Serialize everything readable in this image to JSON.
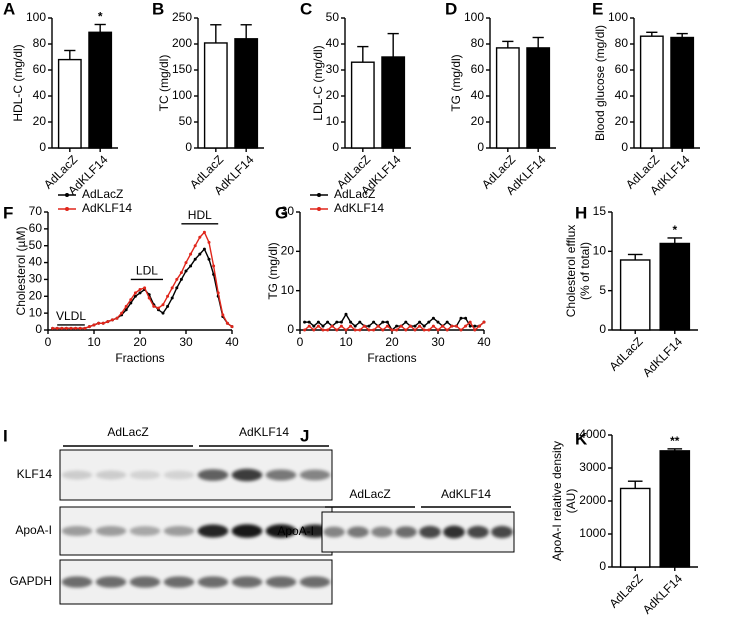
{
  "chart_data": [
    {
      "type": "bar",
      "panel": "A",
      "ylabel": [
        "HDL-C (mg/dl)"
      ],
      "categories": [
        "AdLacZ",
        "AdKLF14"
      ],
      "values": [
        68,
        89
      ],
      "errors": [
        7,
        6
      ],
      "colors": [
        "#ffffff",
        "#000000"
      ],
      "significance": [
        null,
        "*"
      ],
      "ylim": [
        0,
        100
      ],
      "yticks": [
        0,
        20,
        40,
        60,
        80,
        100
      ]
    },
    {
      "type": "bar",
      "panel": "B",
      "ylabel": [
        "TC (mg/dl)"
      ],
      "categories": [
        "AdLacZ",
        "AdKLF14"
      ],
      "values": [
        202,
        210
      ],
      "errors": [
        35,
        27
      ],
      "colors": [
        "#ffffff",
        "#000000"
      ],
      "significance": [
        null,
        null
      ],
      "ylim": [
        0,
        250
      ],
      "yticks": [
        0,
        50,
        100,
        150,
        200,
        250
      ]
    },
    {
      "type": "bar",
      "panel": "C",
      "ylabel": [
        "LDL-C (mg/dl)"
      ],
      "categories": [
        "AdLacZ",
        "AdKLF14"
      ],
      "values": [
        33,
        35
      ],
      "errors": [
        6,
        9
      ],
      "colors": [
        "#ffffff",
        "#000000"
      ],
      "significance": [
        null,
        null
      ],
      "ylim": [
        0,
        50
      ],
      "yticks": [
        0,
        10,
        20,
        30,
        40,
        50
      ]
    },
    {
      "type": "bar",
      "panel": "D",
      "ylabel": [
        "TG (mg/dl)"
      ],
      "categories": [
        "AdLacZ",
        "AdKLF14"
      ],
      "values": [
        77,
        77
      ],
      "errors": [
        5,
        8
      ],
      "colors": [
        "#ffffff",
        "#000000"
      ],
      "significance": [
        null,
        null
      ],
      "ylim": [
        0,
        100
      ],
      "yticks": [
        0,
        20,
        40,
        60,
        80,
        100
      ]
    },
    {
      "type": "bar",
      "panel": "E",
      "ylabel": [
        "Blood glucose (mg/dl)"
      ],
      "categories": [
        "AdLacZ",
        "AdKLF14"
      ],
      "values": [
        86,
        85
      ],
      "errors": [
        3,
        3
      ],
      "colors": [
        "#ffffff",
        "#000000"
      ],
      "significance": [
        null,
        null
      ],
      "ylim": [
        0,
        100
      ],
      "yticks": [
        0,
        20,
        40,
        60,
        80,
        100
      ]
    },
    {
      "type": "line",
      "panel": "F",
      "ylabel": [
        "Cholesterol (µM)"
      ],
      "xlabel": "Fractions",
      "annotations": [
        "VLDL",
        "LDL",
        "HDL"
      ],
      "x": [
        1,
        2,
        3,
        4,
        5,
        6,
        7,
        8,
        9,
        10,
        11,
        12,
        13,
        14,
        15,
        16,
        17,
        18,
        19,
        20,
        21,
        22,
        23,
        24,
        25,
        26,
        27,
        28,
        29,
        30,
        31,
        32,
        33,
        34,
        35,
        36,
        37,
        38,
        39,
        40
      ],
      "series": [
        {
          "name": "AdLacZ",
          "color": "#000000",
          "values": [
            1,
            1,
            1,
            1,
            1,
            1,
            1,
            1,
            2,
            3,
            4,
            4,
            5,
            6,
            7,
            9,
            12,
            16,
            20,
            22,
            24,
            21,
            15,
            12,
            10,
            14,
            19,
            25,
            30,
            35,
            38,
            42,
            45,
            48,
            42,
            33,
            20,
            8,
            4,
            2
          ]
        },
        {
          "name": "AdKLF14",
          "color": "#e0261b",
          "values": [
            1,
            1,
            1,
            1,
            1,
            1,
            1,
            1,
            2,
            3,
            4,
            4,
            5,
            6,
            7,
            10,
            14,
            18,
            22,
            24,
            25,
            19,
            14,
            13,
            15,
            20,
            25,
            30,
            34,
            40,
            45,
            50,
            55,
            58,
            52,
            38,
            22,
            9,
            4,
            2
          ]
        }
      ],
      "xlim": [
        0,
        40
      ],
      "xticks": [
        0,
        10,
        20,
        30,
        40
      ],
      "ylim": [
        0,
        70
      ],
      "yticks": [
        0,
        10,
        20,
        30,
        40,
        50,
        60,
        70
      ]
    },
    {
      "type": "line",
      "panel": "G",
      "ylabel": [
        "TG (mg/dl)"
      ],
      "xlabel": "Fractions",
      "annotations": [],
      "x": [
        1,
        2,
        3,
        4,
        5,
        6,
        7,
        8,
        9,
        10,
        11,
        12,
        13,
        14,
        15,
        16,
        17,
        18,
        19,
        20,
        21,
        22,
        23,
        24,
        25,
        26,
        27,
        28,
        29,
        30,
        31,
        32,
        33,
        34,
        35,
        36,
        37,
        38,
        39,
        40
      ],
      "series": [
        {
          "name": "AdLacZ",
          "color": "#000000",
          "values": [
            2,
            2,
            1,
            2,
            1,
            2,
            1,
            2,
            2,
            4,
            2,
            1,
            2,
            1,
            1,
            2,
            1,
            2,
            2,
            0,
            1,
            1,
            2,
            1,
            1,
            2,
            1,
            2,
            3,
            2,
            1,
            2,
            1,
            1,
            3,
            3,
            1,
            1,
            1,
            2
          ]
        },
        {
          "name": "AdKLF14",
          "color": "#e0261b",
          "values": [
            0,
            1,
            0,
            1,
            0,
            0,
            1,
            0,
            1,
            0,
            1,
            0,
            0,
            1,
            0,
            0,
            1,
            0,
            1,
            0,
            0,
            1,
            0,
            1,
            0,
            1,
            0,
            0,
            1,
            0,
            1,
            0,
            1,
            1,
            0,
            1,
            2,
            0,
            1,
            2
          ]
        }
      ],
      "xlim": [
        0,
        40
      ],
      "xticks": [
        0,
        10,
        20,
        30,
        40
      ],
      "ylim": [
        0,
        30
      ],
      "yticks": [
        0,
        10,
        20,
        30
      ]
    },
    {
      "type": "bar",
      "panel": "H",
      "ylabel": [
        "Cholesterol efflux",
        "(% of total)"
      ],
      "categories": [
        "AdLacZ",
        "AdKLF14"
      ],
      "values": [
        8.9,
        11.0
      ],
      "errors": [
        0.7,
        0.7
      ],
      "colors": [
        "#ffffff",
        "#000000"
      ],
      "significance": [
        null,
        "*"
      ],
      "ylim": [
        0,
        15
      ],
      "yticks": [
        0,
        5,
        10,
        15
      ]
    },
    {
      "type": "bar",
      "panel": "K",
      "ylabel": [
        "ApoA-I relative density",
        "(AU)"
      ],
      "categories": [
        "AdLacZ",
        "AdKLF14"
      ],
      "values": [
        2380,
        3520
      ],
      "errors": [
        220,
        60
      ],
      "colors": [
        "#ffffff",
        "#000000"
      ],
      "significance": [
        null,
        "**"
      ],
      "ylim": [
        0,
        4000
      ],
      "yticks": [
        0,
        1000,
        2000,
        3000,
        4000
      ]
    }
  ],
  "blots": [
    {
      "panel": "I",
      "groups": [
        "AdLacZ",
        "AdKLF14"
      ],
      "rows": [
        "KLF14",
        "ApoA-I",
        "GAPDH"
      ]
    },
    {
      "panel": "J",
      "groups": [
        "AdLacZ",
        "AdKLF14"
      ],
      "rows": [
        "ApoA-I"
      ]
    }
  ]
}
